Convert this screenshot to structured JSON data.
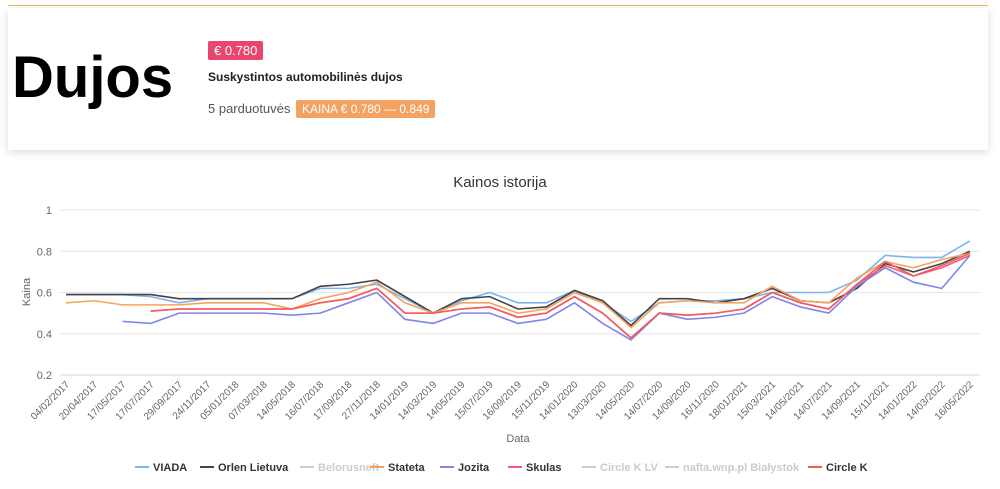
{
  "card": {
    "title": "Dujos",
    "price_badge": "€ 0.780",
    "subtitle": "Suskystintos automobilinės dujos",
    "stores": "5 parduotuvės",
    "price_range": "KAINA € 0.780 — 0.849"
  },
  "chart_data": {
    "type": "line",
    "title": "Kainos istorija",
    "x_label": "Data",
    "y_label": "Kaina",
    "categories": [
      "04/02/2017",
      "20/04/2017",
      "17/05/2017",
      "17/07/2017",
      "29/09/2017",
      "24/11/2017",
      "05/01/2018",
      "07/03/2018",
      "14/05/2018",
      "16/07/2018",
      "17/09/2018",
      "27/11/2018",
      "14/01/2019",
      "14/03/2019",
      "14/05/2019",
      "15/07/2019",
      "16/09/2019",
      "15/11/2019",
      "14/01/2020",
      "13/03/2020",
      "14/05/2020",
      "14/07/2020",
      "14/09/2020",
      "16/11/2020",
      "18/01/2021",
      "15/03/2021",
      "14/05/2021",
      "14/07/2021",
      "14/09/2021",
      "15/11/2021",
      "14/01/2022",
      "14/03/2022",
      "16/05/2022"
    ],
    "ylim": [
      0.2,
      1
    ],
    "yticks": [
      0.2,
      0.4,
      0.6,
      0.8,
      1
    ],
    "grid": true,
    "series": [
      {
        "name": "VIADA",
        "color": "#7cb5ec",
        "values": [
          0.59,
          0.59,
          0.59,
          0.58,
          0.55,
          0.57,
          0.57,
          0.57,
          0.57,
          0.62,
          0.62,
          0.64,
          0.57,
          0.5,
          0.56,
          0.6,
          0.55,
          0.55,
          0.61,
          0.55,
          0.46,
          0.55,
          0.56,
          0.56,
          0.57,
          0.6,
          0.6,
          0.6,
          0.66,
          0.78,
          0.77,
          0.77,
          0.85
        ]
      },
      {
        "name": "Orlen Lietuva",
        "color": "#434348",
        "values": [
          0.59,
          0.59,
          0.59,
          0.59,
          0.57,
          0.57,
          0.57,
          0.57,
          0.57,
          0.63,
          0.64,
          0.66,
          0.58,
          0.5,
          0.57,
          0.58,
          0.52,
          0.53,
          0.61,
          0.56,
          0.44,
          0.57,
          0.57,
          0.55,
          0.57,
          0.62,
          0.56,
          0.55,
          0.62,
          0.74,
          0.7,
          0.74,
          0.8
        ]
      },
      {
        "name": "Belorusneft",
        "color": "#cccccc",
        "hidden": true
      },
      {
        "name": "Stateta",
        "color": "#f7a35c",
        "values": [
          0.55,
          0.56,
          0.54,
          0.54,
          0.54,
          0.55,
          0.55,
          0.55,
          0.52,
          0.57,
          0.6,
          0.65,
          0.55,
          0.5,
          0.55,
          0.55,
          0.5,
          0.52,
          0.6,
          0.55,
          0.43,
          0.55,
          0.56,
          0.55,
          0.55,
          0.63,
          0.56,
          0.55,
          0.67,
          0.75,
          0.72,
          0.76,
          0.79
        ]
      },
      {
        "name": "Jozita",
        "color": "#8085e9",
        "values": [
          null,
          null,
          0.46,
          0.45,
          0.5,
          0.5,
          0.5,
          0.5,
          0.49,
          0.5,
          0.55,
          0.6,
          0.47,
          0.45,
          0.5,
          0.5,
          0.45,
          0.47,
          0.55,
          0.45,
          0.37,
          0.5,
          0.47,
          0.48,
          0.5,
          0.58,
          0.53,
          0.5,
          0.63,
          0.72,
          0.65,
          0.62,
          0.78
        ]
      },
      {
        "name": "Skulas",
        "color": "#f15c80",
        "values": [
          null,
          null,
          null,
          0.51,
          0.52,
          0.52,
          0.52,
          0.52,
          0.52,
          0.55,
          0.57,
          0.62,
          0.5,
          0.5,
          0.52,
          0.53,
          0.48,
          0.5,
          0.58,
          0.5,
          0.38,
          0.5,
          0.49,
          0.5,
          0.52,
          0.6,
          0.55,
          0.52,
          0.64,
          0.73,
          0.68,
          0.72,
          0.78
        ]
      },
      {
        "name": "Circle K LV",
        "color": "#cccccc",
        "hidden": true
      },
      {
        "name": "nafta.wnp.pl Białystok",
        "color": "#cccccc",
        "hidden": true
      },
      {
        "name": "Circle K",
        "color": "#f45b5b",
        "values": [
          null,
          null,
          null,
          0.51,
          0.52,
          0.52,
          0.52,
          0.52,
          0.52,
          0.55,
          0.57,
          0.62,
          0.5,
          0.5,
          0.52,
          0.53,
          0.48,
          0.5,
          0.58,
          0.5,
          0.38,
          0.5,
          0.49,
          0.5,
          0.52,
          0.6,
          0.55,
          0.52,
          0.64,
          0.75,
          0.68,
          0.73,
          0.79
        ]
      }
    ]
  }
}
